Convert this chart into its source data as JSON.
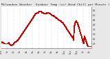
{
  "title": "Milwaukee Weather  Outdoor Temp (vs) Wind Chill per Minute (Last 24 Hours)",
  "bg_color": "#e8e8e8",
  "plot_bg_color": "#ffffff",
  "line_color": "#cc0000",
  "line_width": 0.6,
  "yticks": [
    20,
    25,
    30,
    35,
    40,
    45,
    50,
    55
  ],
  "ylim": [
    15,
    59
  ],
  "xlim": [
    0,
    143
  ],
  "grid_color": "#999999",
  "title_fontsize": 3.2,
  "tick_fontsize": 2.5,
  "temp_data": [
    22,
    22,
    21,
    21,
    21,
    20,
    20,
    20,
    20,
    20,
    20,
    20,
    21,
    20,
    19,
    19,
    18,
    18,
    19,
    19,
    20,
    21,
    22,
    22,
    22,
    23,
    23,
    24,
    25,
    26,
    27,
    28,
    29,
    30,
    31,
    32,
    33,
    34,
    35,
    36,
    37,
    38,
    39,
    40,
    41,
    42,
    43,
    44,
    45,
    46,
    47,
    48,
    49,
    50,
    51,
    52,
    52,
    53,
    53,
    53,
    54,
    54,
    54,
    54,
    54,
    53,
    53,
    53,
    52,
    52,
    52,
    52,
    52,
    53,
    53,
    53,
    53,
    52,
    52,
    51,
    51,
    50,
    50,
    50,
    49,
    49,
    48,
    48,
    47,
    47,
    46,
    46,
    45,
    45,
    44,
    44,
    43,
    43,
    42,
    41,
    40,
    39,
    38,
    37,
    36,
    35,
    34,
    33,
    32,
    31,
    30,
    29,
    28,
    27,
    26,
    24,
    38,
    41,
    43,
    44,
    43,
    42,
    40,
    38,
    36,
    33,
    31,
    29,
    27,
    24,
    22,
    20,
    28,
    26,
    24,
    22,
    20,
    18,
    17,
    17,
    17,
    17,
    17,
    17
  ],
  "xtick_positions": [
    0,
    10,
    20,
    30,
    40,
    50,
    60,
    70,
    80,
    90,
    100,
    110,
    120,
    130,
    140
  ],
  "xtick_labels": [
    "12a",
    "1a",
    "2a",
    "3a",
    "4a",
    "5a",
    "6a",
    "7a",
    "8a",
    "9a",
    "10a",
    "11a",
    "12p",
    "1p",
    "2p"
  ]
}
